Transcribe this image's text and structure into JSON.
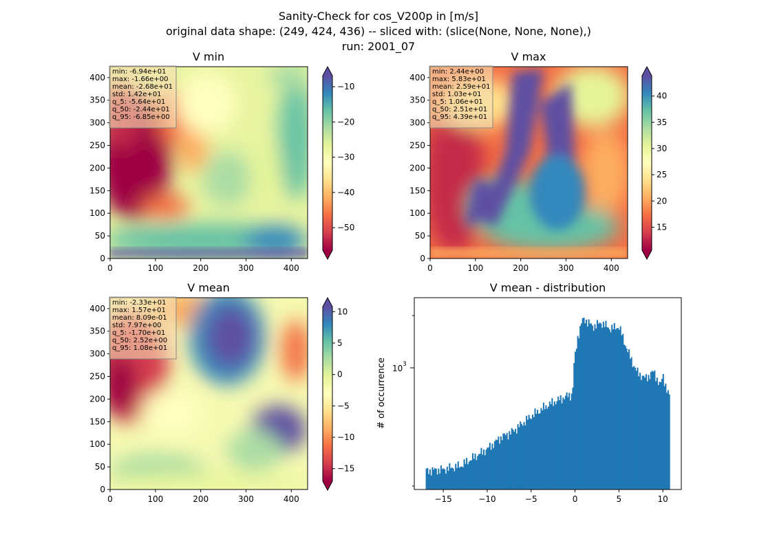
{
  "figure": {
    "title_lines": [
      "Sanity-Check for cos_V200p in [m/s]",
      "original data shape: (249, 424, 436) -- sliced with: (slice(None, None, None),)",
      "run: 2001_07"
    ]
  },
  "chart_data": [
    {
      "type": "heatmap",
      "title": "V min",
      "colormap": "Spectral",
      "x_ticks": [
        0,
        100,
        200,
        300,
        400
      ],
      "y_ticks": [
        0,
        50,
        100,
        150,
        200,
        250,
        300,
        350,
        400
      ],
      "xlim": [
        0,
        436
      ],
      "ylim": [
        0,
        424
      ],
      "colorbar": {
        "ticks": [
          -50,
          -40,
          -30,
          -20,
          -10
        ],
        "tick_labels": [
          "−50",
          "−40",
          "−30",
          "−20",
          "−10"
        ],
        "range": [
          -56.4,
          -6.85
        ],
        "extend": "both"
      },
      "stats": [
        "min: -6.94e+01",
        "max: -1.66e+00",
        "mean: -2.68e+01",
        "std: 1.42e+01",
        "q_5: -5.64e+01",
        "q_50: -2.44e+01",
        "q_95: -6.85e+00"
      ]
    },
    {
      "type": "heatmap",
      "title": "V max",
      "colormap": "Spectral",
      "x_ticks": [
        0,
        100,
        200,
        300,
        400
      ],
      "y_ticks": [
        0,
        50,
        100,
        150,
        200,
        250,
        300,
        350,
        400
      ],
      "xlim": [
        0,
        436
      ],
      "ylim": [
        0,
        424
      ],
      "colorbar": {
        "ticks": [
          15,
          20,
          25,
          30,
          35,
          40
        ],
        "tick_labels": [
          "15",
          "20",
          "25",
          "30",
          "35",
          "40"
        ],
        "range": [
          10.6,
          43.9
        ],
        "extend": "both"
      },
      "stats": [
        "min: 2.44e+00",
        "max: 5.83e+01",
        "mean: 2.59e+01",
        "std: 1.03e+01",
        "q_5: 1.06e+01",
        "q_50: 2.51e+01",
        "q_95: 4.39e+01"
      ]
    },
    {
      "type": "heatmap",
      "title": "V mean",
      "colormap": "Spectral",
      "x_ticks": [
        0,
        100,
        200,
        300,
        400
      ],
      "y_ticks": [
        0,
        50,
        100,
        150,
        200,
        250,
        300,
        350,
        400
      ],
      "xlim": [
        0,
        436
      ],
      "ylim": [
        0,
        424
      ],
      "colorbar": {
        "ticks": [
          -15,
          -10,
          -5,
          0,
          5,
          10
        ],
        "tick_labels": [
          "−15",
          "−10",
          "−5",
          "0",
          "5",
          "10"
        ],
        "range": [
          -17.0,
          10.8
        ],
        "extend": "both"
      },
      "stats": [
        "min: -2.33e+01",
        "max: 1.57e+01",
        "mean: 8.09e-01",
        "std: 7.97e+00",
        "q_5: -1.70e+01",
        "q_50: 2.52e+00",
        "q_95: 1.08e+01"
      ]
    },
    {
      "type": "bar",
      "title": "V mean - distribution",
      "ylabel": "# of occurrence",
      "yscale": "log",
      "color": "#1f77b4",
      "x_ticks": [
        -15,
        -10,
        -5,
        0,
        5,
        10
      ],
      "x_tick_labels": [
        "−15",
        "−10",
        "−5",
        "0",
        "5",
        "10"
      ],
      "y_tick_labels": [
        "10",
        "3"
      ],
      "xlim": [
        -18.3,
        12.1
      ],
      "ylim": [
        150,
        4700
      ],
      "bins": {
        "start": -17.0,
        "end": 10.8,
        "count": 200
      },
      "envelope": [
        [
          -17.0,
          210
        ],
        [
          -15.0,
          215
        ],
        [
          -13.0,
          230
        ],
        [
          -12.0,
          255
        ],
        [
          -10.0,
          310
        ],
        [
          -8.5,
          380
        ],
        [
          -7.0,
          430
        ],
        [
          -5.0,
          560
        ],
        [
          -3.0,
          690
        ],
        [
          -1.0,
          800
        ],
        [
          -0.3,
          830
        ],
        [
          -0.1,
          1450
        ],
        [
          0.3,
          2300
        ],
        [
          0.8,
          3100
        ],
        [
          1.1,
          3200
        ],
        [
          2.0,
          2800
        ],
        [
          3.0,
          3000
        ],
        [
          4.0,
          2700
        ],
        [
          5.0,
          2800
        ],
        [
          6.0,
          1800
        ],
        [
          7.0,
          1250
        ],
        [
          8.0,
          1100
        ],
        [
          9.0,
          1250
        ],
        [
          9.7,
          950
        ],
        [
          10.0,
          1200
        ],
        [
          10.5,
          850
        ],
        [
          10.8,
          800
        ]
      ]
    }
  ]
}
